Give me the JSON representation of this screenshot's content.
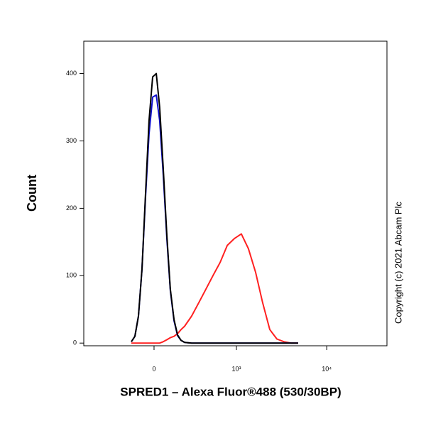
{
  "chart_data": {
    "type": "line",
    "xscale": "biexponential",
    "y_label": "Count",
    "x_label": "SPRED1 – Alexa Fluor®488 (530/30BP)",
    "copyright": "Copyright (c) 2021 Abcam Plc",
    "xlim": [
      -726,
      46000
    ],
    "ylim": [
      -4,
      448
    ],
    "xticks": [
      0,
      {
        "value": 1000,
        "label": "10³"
      },
      {
        "value": 10000,
        "label": "10⁴"
      }
    ],
    "yticks": [
      0,
      100,
      200,
      300,
      400
    ],
    "x": [
      -153,
      -127,
      -102,
      -78,
      -55,
      -32,
      -9,
      14,
      36,
      59,
      83,
      107,
      133,
      159,
      186,
      215,
      278,
      351,
      435,
      532,
      650,
      785,
      945,
      1137,
      1366,
      1641,
      1966,
      2359,
      2827,
      3382,
      4050,
      4848
    ],
    "series": [
      {
        "color": "#ff2020",
        "values": [
          0,
          0,
          0,
          0,
          0,
          0,
          0,
          0,
          0,
          2,
          5,
          8,
          10,
          14,
          20,
          25,
          40,
          60,
          80,
          100,
          120,
          145,
          155,
          162,
          140,
          105,
          60,
          20,
          6,
          2,
          0,
          0
        ]
      },
      {
        "color": "#1010cc",
        "values": [
          2,
          10,
          40,
          110,
          215,
          310,
          365,
          368,
          330,
          250,
          155,
          78,
          33,
          11,
          4,
          1,
          0,
          0,
          0,
          0,
          0,
          0,
          0,
          0,
          0,
          0,
          0,
          0,
          0,
          0,
          0,
          0
        ]
      },
      {
        "color": "#000000",
        "values": [
          2,
          10,
          40,
          110,
          220,
          330,
          395,
          400,
          350,
          260,
          160,
          80,
          35,
          12,
          4,
          1,
          0,
          0,
          0,
          0,
          0,
          0,
          0,
          0,
          0,
          0,
          0,
          0,
          0,
          0,
          0,
          0
        ]
      }
    ]
  }
}
